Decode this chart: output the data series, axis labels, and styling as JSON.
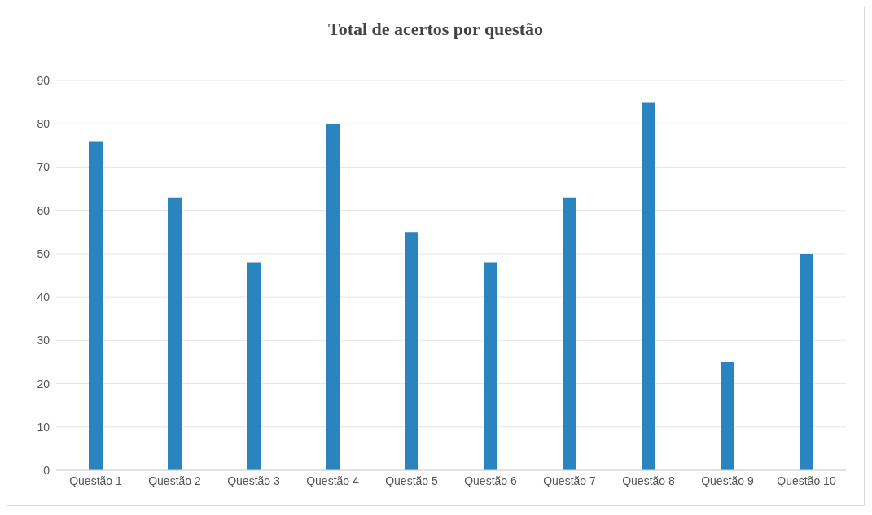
{
  "chart_data": {
    "type": "bar",
    "title": "Total de acertos por questão",
    "categories": [
      "Questão 1",
      "Questão 2",
      "Questão 3",
      "Questão 4",
      "Questão 5",
      "Questão 6",
      "Questão 7",
      "Questão 8",
      "Questão 9",
      "Questão 10"
    ],
    "values": [
      76,
      63,
      48,
      80,
      55,
      48,
      63,
      85,
      25,
      50
    ],
    "color": "#2a84c0",
    "ylim": [
      0,
      90
    ],
    "yticks": [
      0,
      10,
      20,
      30,
      40,
      50,
      60,
      70,
      80,
      90
    ],
    "grid": "y"
  }
}
